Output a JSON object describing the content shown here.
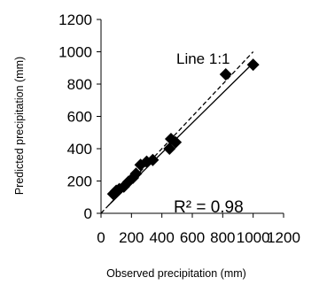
{
  "chart_data": {
    "type": "scatter",
    "xlabel": "Observed precipitation (mm)",
    "ylabel": "Predicted precipitation (mm)",
    "xlim": [
      0,
      1200
    ],
    "ylim": [
      0,
      1200
    ],
    "x_ticks": [
      "0",
      "200",
      "400",
      "600",
      "800",
      "1000",
      "1200"
    ],
    "y_ticks": [
      "0",
      "200",
      "400",
      "600",
      "800",
      "1000",
      "1200"
    ],
    "grid": false,
    "legend": "none",
    "series": [
      {
        "marker": "diamond",
        "color": "#000000",
        "points": [
          {
            "x": 80,
            "y": 120
          },
          {
            "x": 100,
            "y": 140
          },
          {
            "x": 120,
            "y": 150
          },
          {
            "x": 150,
            "y": 165
          },
          {
            "x": 180,
            "y": 195
          },
          {
            "x": 210,
            "y": 220
          },
          {
            "x": 230,
            "y": 245
          },
          {
            "x": 260,
            "y": 300
          },
          {
            "x": 300,
            "y": 320
          },
          {
            "x": 340,
            "y": 330
          },
          {
            "x": 450,
            "y": 400
          },
          {
            "x": 460,
            "y": 460
          },
          {
            "x": 490,
            "y": 440
          },
          {
            "x": 820,
            "y": 860
          },
          {
            "x": 1000,
            "y": 920
          }
        ]
      }
    ],
    "lines": [
      {
        "label": "Line 1:1",
        "style": "dashed",
        "x": [
          0,
          1000
        ],
        "y": [
          0,
          1000
        ]
      },
      {
        "label": "",
        "style": "solid",
        "x": [
          50,
          1000
        ],
        "y": [
          50,
          930
        ]
      }
    ],
    "annotations": {
      "line_label": "Line 1:1",
      "r_squared": "R² = 0.98"
    }
  }
}
